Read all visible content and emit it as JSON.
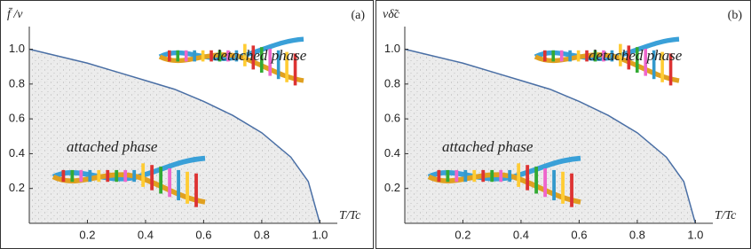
{
  "chart_data": [
    {
      "type": "area",
      "panel_label": "(a)",
      "y_label": "f̄ /ν",
      "x_label": "T/Tc",
      "annotations": [
        "detached phase",
        "attached phase"
      ],
      "x": [
        0,
        0.1,
        0.2,
        0.3,
        0.4,
        0.5,
        0.6,
        0.7,
        0.8,
        0.9,
        0.96,
        1.0
      ],
      "values": [
        1.0,
        0.96,
        0.92,
        0.87,
        0.82,
        0.77,
        0.7,
        0.62,
        0.52,
        0.38,
        0.24,
        0
      ],
      "color": "#4a6fa5",
      "xlim": [
        0,
        1.06
      ],
      "ylim": [
        0,
        1.13
      ],
      "xticks": [
        0.2,
        0.4,
        0.6,
        0.8,
        {
          "value": 1.0,
          "label": "1.0"
        }
      ],
      "yticks": [
        0.2,
        0.4,
        0.6,
        0.8,
        {
          "value": 1.0,
          "label": "1.0"
        }
      ]
    },
    {
      "type": "area",
      "panel_label": "(b)",
      "y_label": "νδ̃c",
      "x_label": "T/Tc",
      "annotations": [
        "detached phase",
        "attached phase"
      ],
      "x": [
        0,
        0.1,
        0.2,
        0.3,
        0.4,
        0.5,
        0.6,
        0.7,
        0.8,
        0.9,
        0.96,
        1.0
      ],
      "values": [
        1.0,
        0.96,
        0.92,
        0.87,
        0.82,
        0.77,
        0.7,
        0.62,
        0.52,
        0.38,
        0.24,
        0
      ],
      "color": "#4a6fa5",
      "xlim": [
        0,
        1.06
      ],
      "ylim": [
        0,
        1.13
      ],
      "xticks": [
        0.2,
        0.4,
        0.6,
        0.8,
        {
          "value": 1.0,
          "label": "1.0"
        }
      ],
      "yticks": [
        0.2,
        0.4,
        0.6,
        0.8,
        {
          "value": 1.0,
          "label": "1.0"
        }
      ]
    }
  ]
}
